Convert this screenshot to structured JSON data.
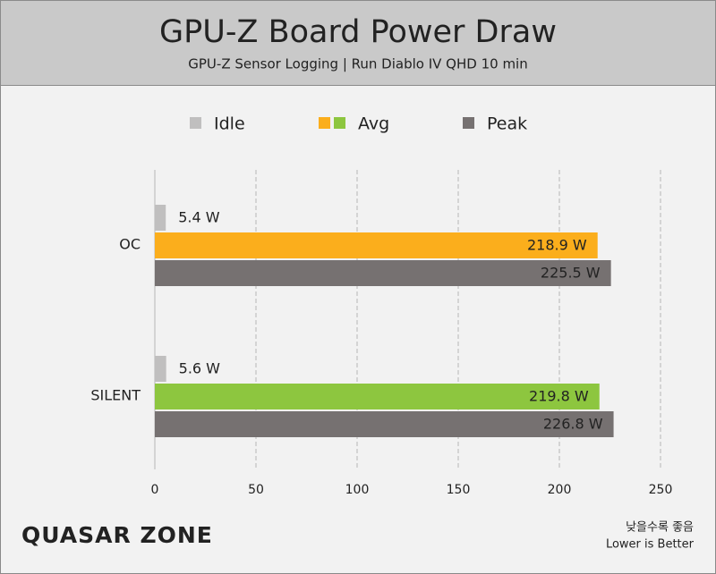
{
  "chart_data": {
    "type": "hbar",
    "title": "GPU-Z Board Power Draw",
    "subtitle": "GPU-Z Sensor Logging  |  Run Diablo IV QHD 10 min",
    "categories": [
      "OC",
      "SILENT"
    ],
    "series": [
      {
        "name": "Idle",
        "color": "#c0bfbf",
        "values": [
          5.4,
          5.6
        ],
        "value_labels": [
          "5.4 W",
          "5.6 W"
        ]
      },
      {
        "name": "Avg",
        "colors": [
          "#fbae1c",
          "#8dc63f"
        ],
        "values": [
          218.9,
          219.8
        ],
        "value_labels": [
          "218.9 W",
          "219.8 W"
        ]
      },
      {
        "name": "Peak",
        "color": "#767171",
        "values": [
          225.5,
          226.8
        ],
        "value_labels": [
          "225.5 W",
          "226.8 W"
        ]
      }
    ],
    "xlim": [
      0,
      250
    ],
    "xticks": [
      0,
      50,
      100,
      150,
      200,
      250
    ],
    "grid": true,
    "legend": "top",
    "logo": "QUASAR ZONE",
    "annotations": [
      "낮을수록 좋음",
      "Lower is Better"
    ]
  }
}
